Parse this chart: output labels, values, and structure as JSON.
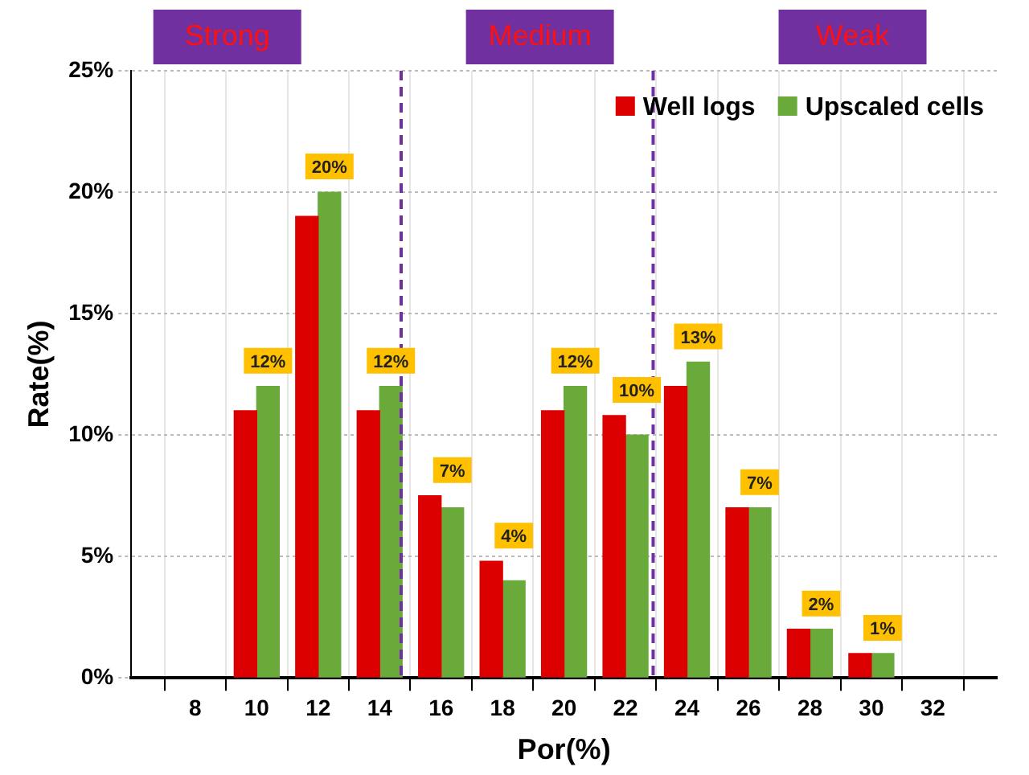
{
  "chart_data": {
    "type": "bar",
    "xlabel": "Por(%)",
    "ylabel": "Rate(%)",
    "x": [
      10,
      12,
      14,
      16,
      18,
      20,
      22,
      24,
      26,
      28,
      30
    ],
    "xlim": [
      7,
      33
    ],
    "xticks": [
      8,
      10,
      12,
      14,
      16,
      18,
      20,
      22,
      24,
      26,
      28,
      30,
      32
    ],
    "ylim": [
      0,
      25
    ],
    "yticks": [
      {
        "value": 0,
        "label": "0%"
      },
      {
        "value": 5,
        "label": "5%"
      },
      {
        "value": 10,
        "label": "10%"
      },
      {
        "value": 15,
        "label": "15%"
      },
      {
        "value": 20,
        "label": "20%"
      },
      {
        "value": 25,
        "label": "25%"
      }
    ],
    "series": [
      {
        "name": "Well logs",
        "color": "#dd0000",
        "values": [
          11,
          19,
          11,
          7.5,
          4.8,
          11,
          10.8,
          12,
          7,
          2,
          1
        ]
      },
      {
        "name": "Upscaled cells",
        "color": "#6aaa3a",
        "values": [
          12,
          20,
          12,
          7,
          4,
          12,
          10,
          13,
          7,
          2,
          1
        ],
        "value_labels": [
          "12%",
          "20%",
          "12%",
          "7%",
          "4%",
          "12%",
          "10%",
          "13%",
          "7%",
          "2%",
          "1%"
        ]
      }
    ],
    "ref_lines": [
      {
        "axis": "x",
        "value": 14.7,
        "color": "#7030a0",
        "line_style": "dashed"
      },
      {
        "axis": "x",
        "value": 22.9,
        "color": "#7030a0",
        "line_style": "dashed"
      }
    ],
    "annotations": [
      "Strong",
      "Medium",
      "Weak"
    ],
    "grid": true,
    "legend": "top right"
  }
}
